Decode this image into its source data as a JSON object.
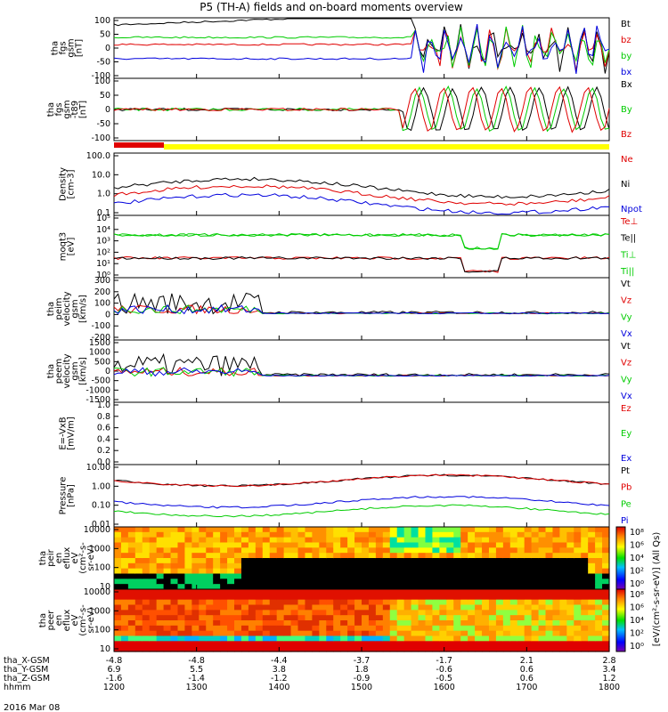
{
  "chart_data": {
    "type": "line",
    "title": "P5 (TH-A) fields and on-board moments overview",
    "x_ticks": [
      "1200",
      "1300",
      "1400",
      "1500",
      "1600",
      "1700",
      "1800"
    ],
    "ephemeris": [
      {
        "label": "tha_X-GSM",
        "values": [
          "-4.8",
          "-4.8",
          "-4.4",
          "-3.7",
          "-1.7",
          "2.1",
          "2.8"
        ]
      },
      {
        "label": "tha_Y-GSM",
        "values": [
          "6.9",
          "5.5",
          "3.8",
          "1.8",
          "-0.6",
          "0.6",
          "3.4"
        ]
      },
      {
        "label": "tha_Z-GSM",
        "values": [
          "-1.6",
          "-1.4",
          "-1.2",
          "-0.9",
          "-0.5",
          "0.6",
          "1.2"
        ]
      },
      {
        "label": "hhmm",
        "values": [
          "1200",
          "1300",
          "1400",
          "1500",
          "1600",
          "1700",
          "1800"
        ]
      }
    ],
    "date": "2016 Mar 08",
    "panels": [
      {
        "id": "fgs",
        "ylabel": [
          "tha",
          "fgs",
          "gsm",
          "[nT]"
        ],
        "yticks": [
          "100",
          "50",
          "0",
          "-50",
          "-100"
        ],
        "ylim": [
          -100,
          100
        ],
        "legend": [
          {
            "name": "Bt",
            "color": "#000000"
          },
          {
            "name": "bz",
            "color": "#e00000"
          },
          {
            "name": "by",
            "color": "#00cc00"
          },
          {
            "name": "bx",
            "color": "#0000dd"
          }
        ]
      },
      {
        "id": "fgs_dipole",
        "ylabel": [
          "tha",
          "fgs",
          "gsm",
          "-t89",
          "[nT]"
        ],
        "yticks": [
          "100",
          "50",
          "0",
          "-50",
          "-100"
        ],
        "ylim": [
          -120,
          120
        ],
        "legend": [
          {
            "name": "Bx",
            "color": "#000000"
          },
          {
            "name": "By",
            "color": "#00cc00"
          },
          {
            "name": "Bz",
            "color": "#e00000"
          }
        ]
      },
      {
        "id": "density",
        "ylabel": [
          "Density",
          "[cm-3]"
        ],
        "yticks": [
          "100.0",
          "10.0",
          "1.0",
          "0.1"
        ],
        "scale": "log",
        "legend": [
          {
            "name": "Ne",
            "color": "#e00000"
          },
          {
            "name": "Ni",
            "color": "#000000"
          },
          {
            "name": "Npot",
            "color": "#0000dd"
          }
        ]
      },
      {
        "id": "temp",
        "ylabel": [
          "moqt3",
          "[eV]"
        ],
        "yticks": [
          "10⁵",
          "10⁴",
          "10³",
          "10²",
          "10¹",
          "10⁰"
        ],
        "scale": "log",
        "legend": [
          {
            "name": "Te⊥",
            "color": "#e00000"
          },
          {
            "name": "Te||",
            "color": "#000000"
          },
          {
            "name": "Ti⊥",
            "color": "#00cc00"
          },
          {
            "name": "Ti||",
            "color": "#00cc00"
          }
        ]
      },
      {
        "id": "peim",
        "ylabel": [
          "tha",
          "peim",
          "velocity",
          "gsm",
          "[km/s]"
        ],
        "yticks": [
          "300",
          "200",
          "100",
          "0",
          "-100",
          "-200"
        ],
        "ylim": [
          -200,
          300
        ],
        "legend": [
          {
            "name": "Vt",
            "color": "#000000"
          },
          {
            "name": "Vz",
            "color": "#e00000"
          },
          {
            "name": "Vy",
            "color": "#00cc00"
          },
          {
            "name": "Vx",
            "color": "#0000dd"
          }
        ]
      },
      {
        "id": "peem",
        "ylabel": [
          "tha",
          "peem",
          "velocity",
          "gsm",
          "[km/s]"
        ],
        "yticks": [
          "1500",
          "1000",
          "500",
          "0",
          "-500",
          "-1000",
          "-1500"
        ],
        "ylim": [
          -1500,
          1500
        ],
        "legend": [
          {
            "name": "Vt",
            "color": "#000000"
          },
          {
            "name": "Vz",
            "color": "#e00000"
          },
          {
            "name": "Vy",
            "color": "#00cc00"
          },
          {
            "name": "Vx",
            "color": "#0000dd"
          }
        ]
      },
      {
        "id": "efield",
        "ylabel": [
          "E=-VxB",
          "[mV/m]"
        ],
        "yticks": [
          "1.0",
          "0.8",
          "0.6",
          "0.4",
          "0.2",
          "0.0"
        ],
        "ylim": [
          0,
          1
        ],
        "legend": [
          {
            "name": "Ez",
            "color": "#e00000"
          },
          {
            "name": "Ey",
            "color": "#00cc00"
          },
          {
            "name": "Ex",
            "color": "#0000dd"
          }
        ]
      },
      {
        "id": "pressure",
        "ylabel": [
          "Pressure",
          "[nPa]"
        ],
        "yticks": [
          "10.00",
          "1.00",
          "0.10",
          "0.01"
        ],
        "scale": "log",
        "legend": [
          {
            "name": "Pt",
            "color": "#000000"
          },
          {
            "name": "Pb",
            "color": "#e00000"
          },
          {
            "name": "Pe",
            "color": "#00cc00"
          },
          {
            "name": "Pi",
            "color": "#0000dd"
          }
        ]
      },
      {
        "id": "peir",
        "ylabel": [
          "tha",
          "peir",
          "en",
          "eflux",
          "eV",
          "(cm²-s-",
          "sr-eV)"
        ],
        "yticks": [
          "10000",
          "1000",
          "100",
          "10"
        ],
        "type": "spectrogram"
      },
      {
        "id": "peer",
        "ylabel": [
          "tha",
          "peer",
          "en",
          "eflux",
          "eV",
          "(cm²-s-",
          "sr-eV)"
        ],
        "yticks": [
          "10000",
          "1000",
          "100",
          "10"
        ],
        "type": "spectrogram"
      }
    ],
    "colorbar": {
      "label": "[eV/(cm²-s-sr-eV)] (All Qs)",
      "top_ticks": [
        "10⁸",
        "10⁶",
        "10⁴",
        "10²",
        "10⁰"
      ],
      "bottom_ticks": [
        "10⁸",
        "10⁶",
        "10⁴",
        "10²",
        "10⁰"
      ]
    }
  }
}
